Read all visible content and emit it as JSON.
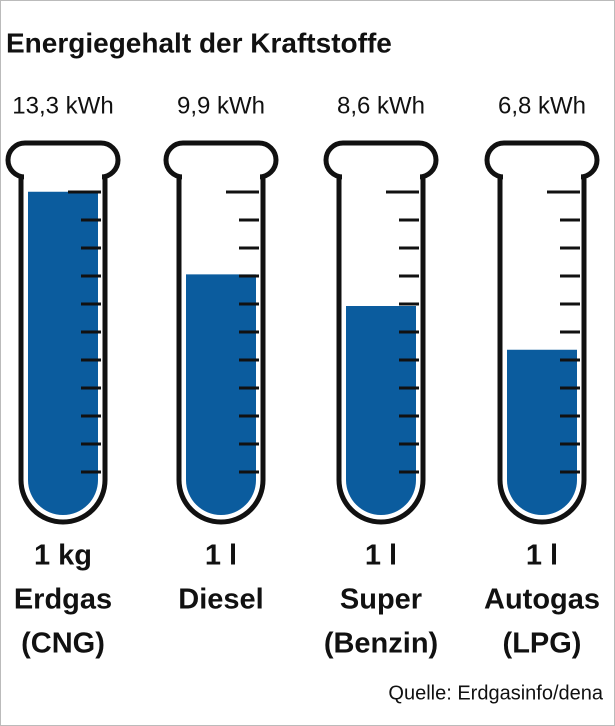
{
  "chart_data": {
    "type": "tube",
    "title": "Energiegehalt der Kraftstoffe",
    "categories": [
      [
        "1 kg",
        "Erdgas",
        "(CNG)"
      ],
      [
        "1 l",
        "Diesel"
      ],
      [
        "1 l",
        "Super",
        "(Benzin)"
      ],
      [
        "1 l",
        "Autogas",
        "(LPG)"
      ]
    ],
    "values": [
      13.3,
      9.9,
      8.6,
      6.8
    ],
    "value_labels": [
      "13,3 kWh",
      "9,9 kWh",
      "8,6 kWh",
      "6,8 kWh"
    ],
    "color": "#0b5c9e",
    "source": "Quelle: Erdgasinfo/dena"
  }
}
